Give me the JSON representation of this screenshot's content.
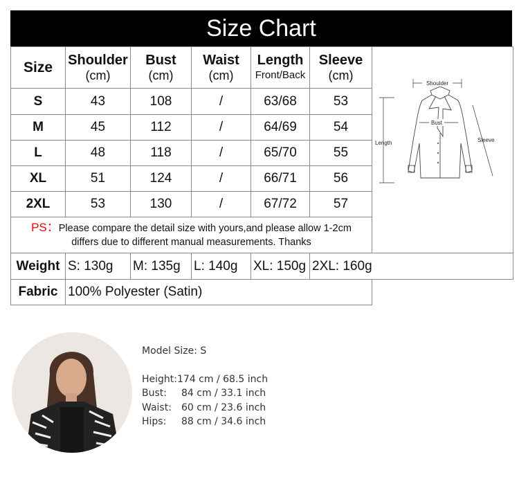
{
  "title": "Size Chart",
  "headers": [
    {
      "main": "Size",
      "unit": ""
    },
    {
      "main": "Shoulder",
      "unit": "(cm)"
    },
    {
      "main": "Bust",
      "unit": "(cm)"
    },
    {
      "main": "Waist",
      "unit": "(cm)"
    },
    {
      "main": "Length",
      "unit": "Front/Back"
    },
    {
      "main": "Sleeve",
      "unit": "(cm)"
    }
  ],
  "rows": [
    [
      "S",
      "43",
      "108",
      "/",
      "63/68",
      "53"
    ],
    [
      "M",
      "45",
      "112",
      "/",
      "64/69",
      "54"
    ],
    [
      "L",
      "48",
      "118",
      "/",
      "65/70",
      "55"
    ],
    [
      "XL",
      "51",
      "124",
      "/",
      "66/71",
      "56"
    ],
    [
      "2XL",
      "53",
      "130",
      "/",
      "67/72",
      "57"
    ]
  ],
  "note": {
    "prefix": "PS：",
    "line1": "Please compare the detail size with yours,and please allow 1-2cm",
    "line2": "differs due to different manual measurements. Thanks",
    "prefix_color": "#e00000"
  },
  "weight": {
    "label": "Weight",
    "values": [
      "S: 130g",
      "M: 135g",
      "L: 140g",
      "XL: 150g",
      "2XL: 160g"
    ]
  },
  "fabric": {
    "label": "Fabric",
    "value": "100% Polyester (Satin)"
  },
  "diagram": {
    "shoulder": "Shoulder",
    "bust": "Bust",
    "length": "Length",
    "sleeve": "Sleeve"
  },
  "model": {
    "size": "Model Size: S",
    "measurements": [
      {
        "label": "Height:",
        "value": "174 cm / 68.5 inch"
      },
      {
        "label": "Bust:",
        "value": "84 cm / 33.1 inch"
      },
      {
        "label": "Waist:",
        "value": "60 cm / 23.6 inch"
      },
      {
        "label": "Hips:",
        "value": "88 cm / 34.6 inch"
      }
    ]
  }
}
